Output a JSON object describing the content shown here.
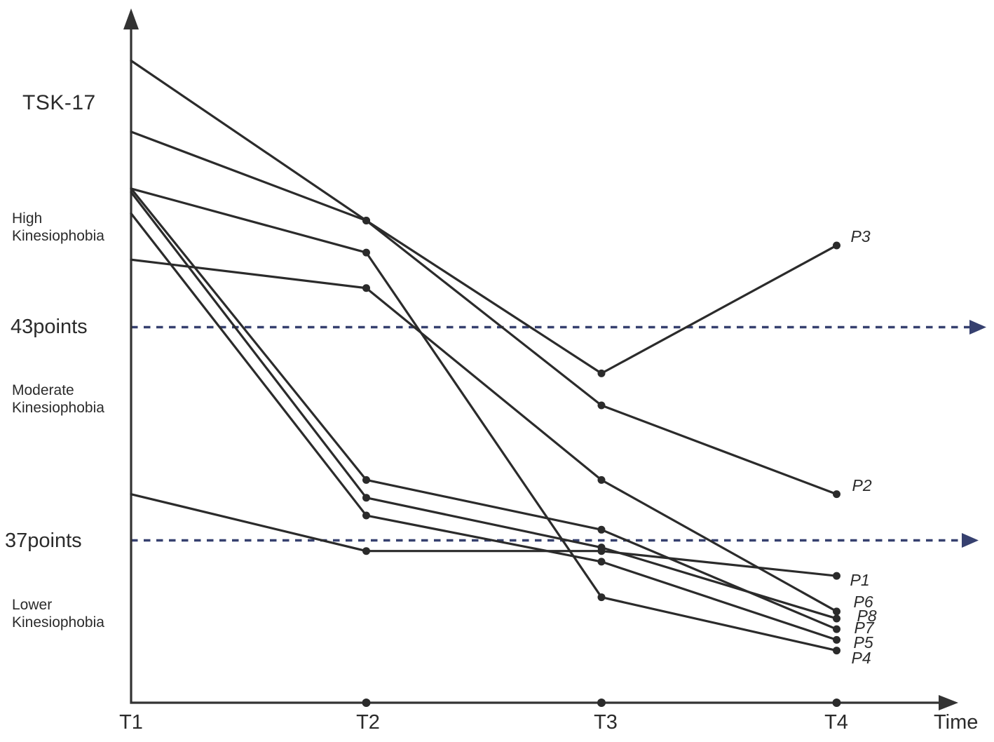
{
  "chart_data": {
    "type": "line",
    "title": "TSK-17",
    "x_axis_label": "Time",
    "categories": [
      "T1",
      "T2",
      "T3",
      "T4"
    ],
    "series": [
      {
        "name": "P1",
        "values": [
          38.3,
          36.7,
          36.7,
          36.0
        ]
      },
      {
        "name": "P2",
        "values": [
          48.5,
          46.0,
          40.8,
          38.3
        ]
      },
      {
        "name": "P3",
        "values": [
          50.5,
          46.0,
          41.7,
          45.3
        ]
      },
      {
        "name": "P4",
        "values": [
          46.9,
          45.1,
          35.4,
          33.9
        ]
      },
      {
        "name": "P5",
        "values": [
          46.2,
          37.7,
          36.4,
          34.2
        ]
      },
      {
        "name": "P6",
        "values": [
          44.9,
          44.1,
          38.7,
          35.0
        ]
      },
      {
        "name": "P7",
        "values": [
          46.9,
          38.7,
          37.3,
          34.5
        ]
      },
      {
        "name": "P8",
        "values": [
          46.8,
          38.2,
          36.8,
          34.8
        ]
      }
    ],
    "reference_lines": [
      {
        "label": "43points",
        "value": 43
      },
      {
        "label": "37points",
        "value": 37
      }
    ],
    "zone_labels": {
      "high": "High\nKinesiophobia",
      "moderate": "Moderate\nKinesiophobia",
      "lower": "Lower\nKinesiophobia"
    },
    "ylim": [
      32.5,
      52
    ],
    "grid": false,
    "legend_position": "line-end-labels",
    "colors": {
      "line": "#2b2b2b",
      "reference": "#36406f"
    }
  }
}
